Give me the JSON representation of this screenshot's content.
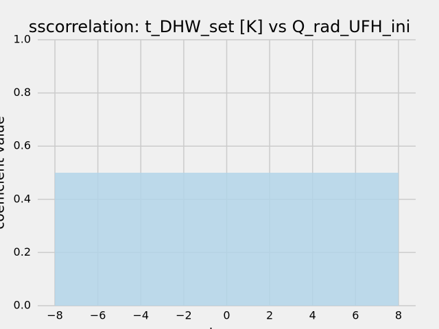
{
  "chart_data": {
    "type": "area",
    "title": "sscorrelation: t_DHW_set [K] vs Q_rad_UFH_ini",
    "xlabel": "lag",
    "ylabel": "coefficient value",
    "x": [
      -8,
      8
    ],
    "values": [
      0.5,
      0.5
    ],
    "color": "#b3d5e9",
    "xlim": [
      -8.8,
      8.8
    ],
    "ylim": [
      0,
      1
    ],
    "xticks": [
      {
        "value": -8,
        "label": "−8"
      },
      {
        "value": -6,
        "label": "−6"
      },
      {
        "value": -4,
        "label": "−4"
      },
      {
        "value": -2,
        "label": "−2"
      },
      0,
      2,
      4,
      6,
      8
    ],
    "yticks": [
      {
        "value": 0,
        "label": "0.0"
      },
      {
        "value": 0.2,
        "label": "0.2"
      },
      {
        "value": 0.4,
        "label": "0.4"
      },
      {
        "value": 0.6,
        "label": "0.6"
      },
      {
        "value": 0.8,
        "label": "0.8"
      },
      {
        "value": 1,
        "label": "1.0"
      }
    ],
    "grid": true
  }
}
